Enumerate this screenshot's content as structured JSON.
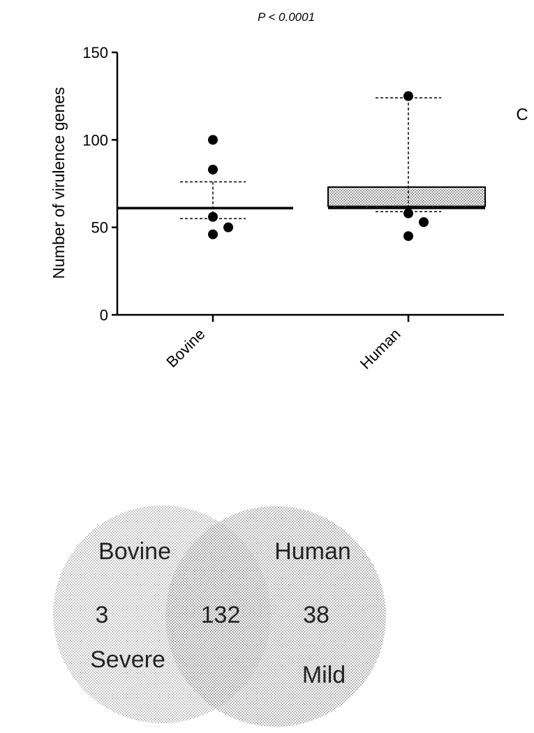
{
  "chart_data": [
    {
      "type": "scatter",
      "title": "P < 0.0001",
      "panel_label": "C",
      "ylabel": "Number of virulence genes",
      "xlabel": "",
      "ylim": [
        0,
        150
      ],
      "yticks": [
        0,
        50,
        100,
        150
      ],
      "categories": [
        "Bovine",
        "Human"
      ],
      "series": [
        {
          "category": "Bovine",
          "points": [
            100,
            83,
            56,
            50,
            46
          ],
          "mean": 61,
          "error_upper": 76,
          "error_lower": 55
        },
        {
          "category": "Human",
          "points": [
            125,
            58,
            53,
            45
          ],
          "bar_low": 62,
          "bar_high": 73,
          "error_upper": 124,
          "error_lower": 59
        }
      ],
      "grid": false
    },
    {
      "type": "venn",
      "sets": [
        {
          "name": "Bovine",
          "sublabel": "Severe",
          "unique_count": "3"
        },
        {
          "name": "Human",
          "sublabel": "Mild",
          "unique_count": "38"
        }
      ],
      "intersection": "132"
    }
  ],
  "colors": {
    "points": "#000000",
    "human_bar": "#a8a8a8",
    "venn_fill": "#c8c8c8",
    "venn_overlap": "#9a9a9a"
  }
}
